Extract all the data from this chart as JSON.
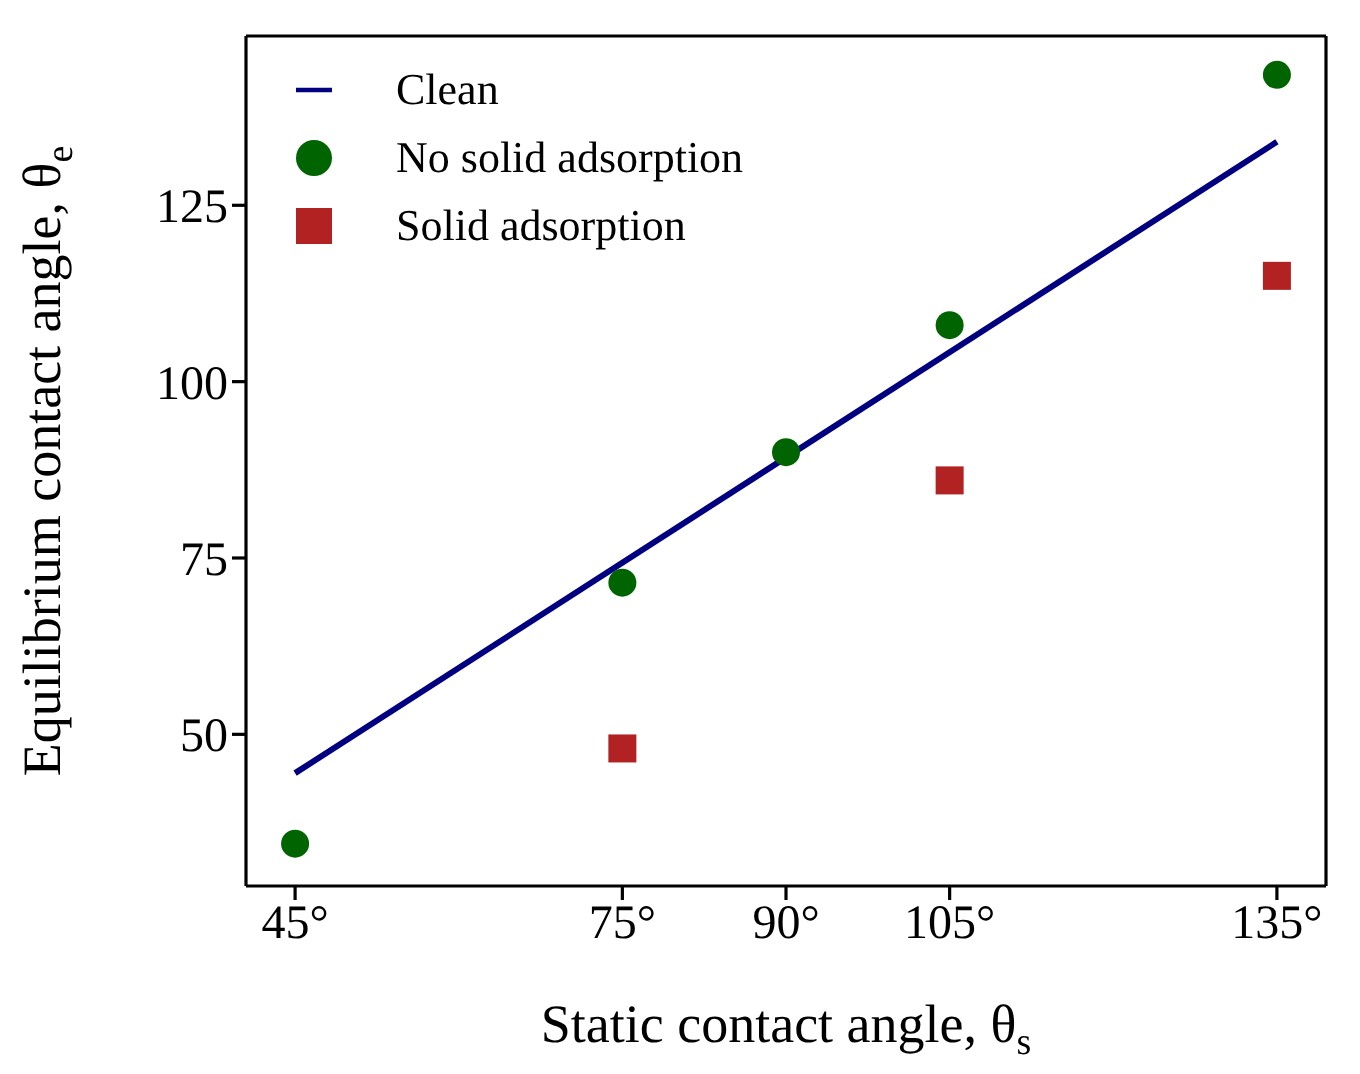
{
  "chart_data": {
    "type": "scatter",
    "xlabel": "Static contact angle, θ$_{s}$",
    "ylabel": "Equilibrium contact angle, θ$_{e}$",
    "series": [
      {
        "name": "Clean",
        "type": "line",
        "color": "#000080",
        "x": [
          45,
          135
        ],
        "values": [
          44.5,
          134
        ]
      },
      {
        "name": "No solid adsorption",
        "type": "scatter",
        "marker": "circle",
        "color": "#006400",
        "x": [
          45,
          75,
          90,
          105,
          135
        ],
        "values": [
          34.5,
          71.5,
          90,
          108,
          143.5
        ]
      },
      {
        "name": "Solid adsorption",
        "type": "scatter",
        "marker": "square",
        "color": "#b22222",
        "x": [
          75,
          105,
          135
        ],
        "values": [
          48,
          86,
          115
        ]
      }
    ],
    "xlim": [
      40.5,
      139.5
    ],
    "xticks": [
      {
        "value": 45,
        "label": "45°"
      },
      {
        "value": 75,
        "label": "75°"
      },
      {
        "value": 90,
        "label": "90°"
      },
      {
        "value": 105,
        "label": "105°"
      },
      {
        "value": 135,
        "label": "135°"
      }
    ],
    "ylim": [
      28.5,
      149
    ],
    "yticks": [
      50,
      75,
      100,
      125
    ],
    "legend": "top left"
  }
}
